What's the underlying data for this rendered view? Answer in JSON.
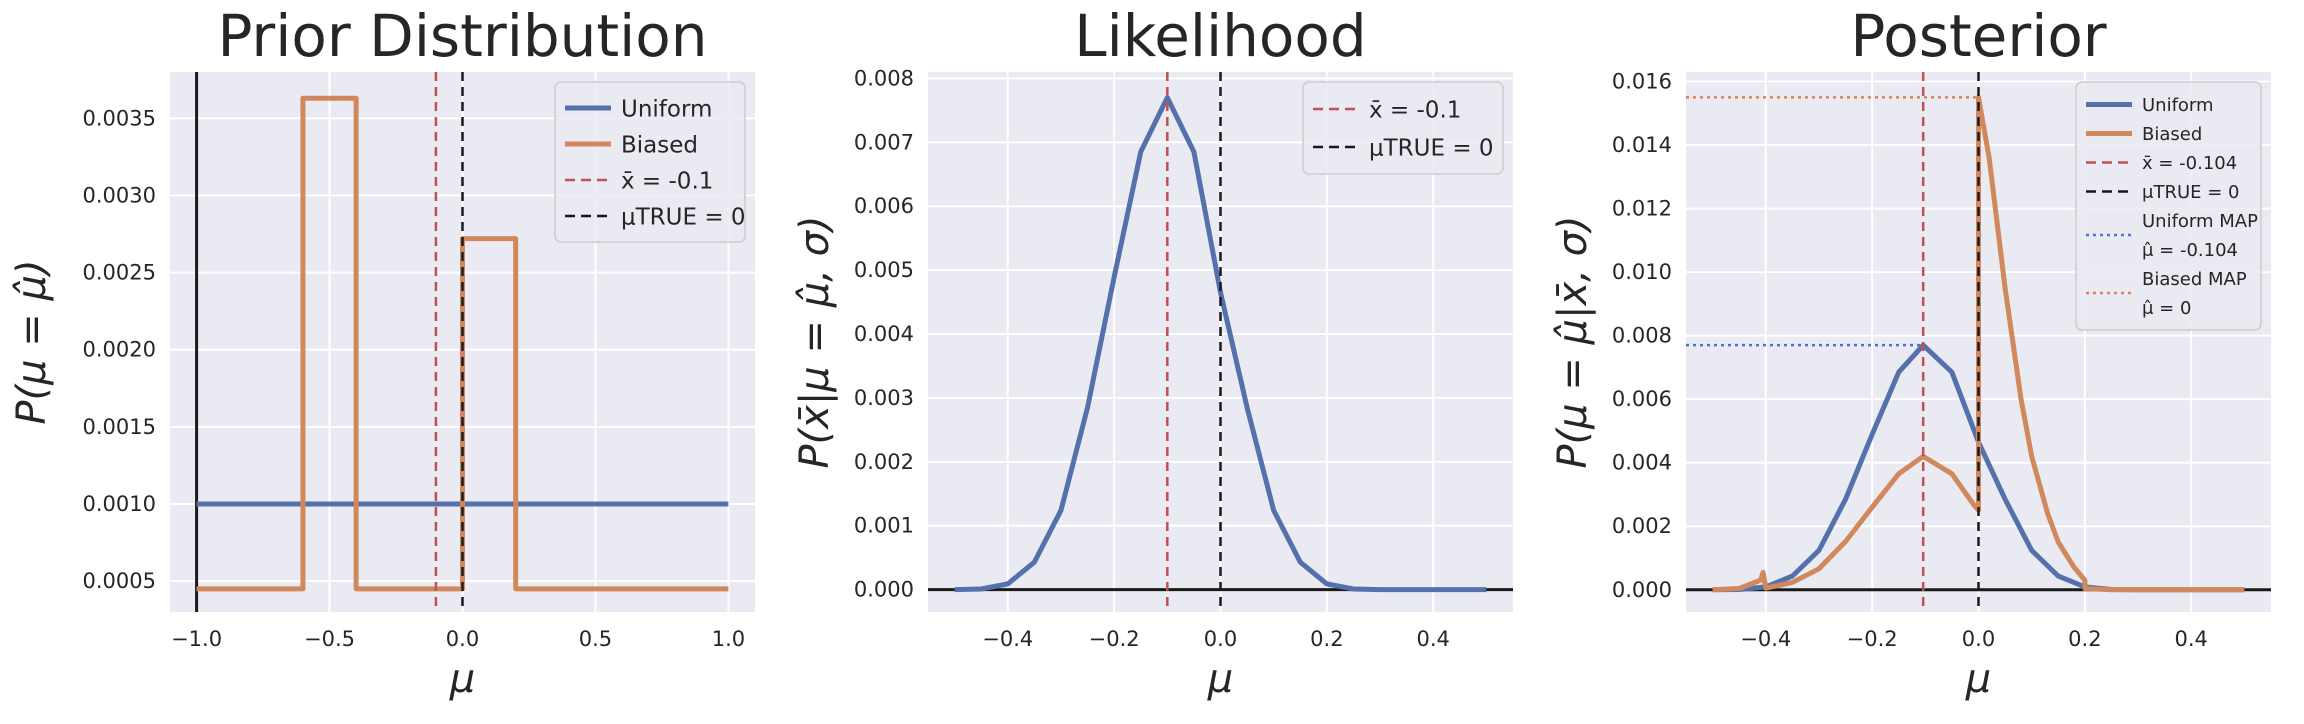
{
  "colors": {
    "uniform": "#5471ab",
    "biased": "#d1885c",
    "xbar": "#c44e52",
    "mu_true": "#1a1a1a",
    "uniform_map": "#4c72d9",
    "biased_map": "#dd8452",
    "axis_line": "#1a1a1a"
  },
  "chart_data": [
    {
      "type": "line",
      "title": "Prior Distribution",
      "xlabel": "μ",
      "ylabel": "P(μ = μ̂)",
      "xlim": [
        -1.1,
        1.1
      ],
      "ylim": [
        0.0003,
        0.0038
      ],
      "xticks": [
        -1.0,
        -0.5,
        0.0,
        0.5,
        1.0
      ],
      "xtick_labels": [
        "−1.0",
        "−0.5",
        "0.0",
        "0.5",
        "1.0"
      ],
      "yticks": [
        0.0005,
        0.001,
        0.0015,
        0.002,
        0.0025,
        0.003,
        0.0035
      ],
      "ytick_labels": [
        "0.0005",
        "0.0010",
        "0.0015",
        "0.0020",
        "0.0025",
        "0.0030",
        "0.0035"
      ],
      "grid": true,
      "legend_position": "upper right",
      "series": [
        {
          "name": "Uniform",
          "style": "solid",
          "color": "uniform",
          "points": [
            [
              -1.0,
              0.001
            ],
            [
              1.0,
              0.001
            ]
          ]
        },
        {
          "name": "Biased",
          "style": "solid",
          "color": "biased",
          "points": [
            [
              -1.0,
              0.00045
            ],
            [
              -0.6,
              0.00045
            ],
            [
              -0.6,
              0.00363
            ],
            [
              -0.4,
              0.00363
            ],
            [
              -0.4,
              0.00045
            ],
            [
              0.0,
              0.00045
            ],
            [
              0.0,
              0.00272
            ],
            [
              0.2,
              0.00272
            ],
            [
              0.2,
              0.00045
            ],
            [
              1.0,
              0.00045
            ]
          ]
        }
      ],
      "vlines": [
        {
          "name": "x̄ = -0.1",
          "x": -0.1,
          "color": "xbar",
          "style": "dashed"
        },
        {
          "name": "μTRUE = 0",
          "x": 0.0,
          "color": "mu_true",
          "style": "dashed"
        }
      ],
      "axis_vline": -1.0,
      "legend": [
        {
          "label": "Uniform",
          "color": "uniform",
          "style": "solid"
        },
        {
          "label": "Biased",
          "color": "biased",
          "style": "solid"
        },
        {
          "label": "x̄ = -0.1",
          "color": "xbar",
          "style": "dashed"
        },
        {
          "label": "μTRUE = 0",
          "color": "mu_true",
          "style": "dashed"
        }
      ]
    },
    {
      "type": "line",
      "title": "Likelihood",
      "xlabel": "μ",
      "ylabel": "P(x̄|μ = μ̂, σ)",
      "xlim": [
        -0.55,
        0.55
      ],
      "ylim": [
        -0.00035,
        0.0081
      ],
      "xticks": [
        -0.4,
        -0.2,
        0.0,
        0.2,
        0.4
      ],
      "xtick_labels": [
        "−0.4",
        "−0.2",
        "0.0",
        "0.2",
        "0.4"
      ],
      "yticks": [
        0.0,
        0.001,
        0.002,
        0.003,
        0.004,
        0.005,
        0.006,
        0.007,
        0.008
      ],
      "ytick_labels": [
        "0.000",
        "0.001",
        "0.002",
        "0.003",
        "0.004",
        "0.005",
        "0.006",
        "0.007",
        "0.008"
      ],
      "grid": true,
      "legend_position": "upper right",
      "series": [
        {
          "name": "Likelihood",
          "style": "solid",
          "color": "uniform",
          "points": [
            [
              -0.5,
              0.0
            ],
            [
              -0.45,
              1e-05
            ],
            [
              -0.4,
              9e-05
            ],
            [
              -0.35,
              0.00043
            ],
            [
              -0.3,
              0.00124
            ],
            [
              -0.25,
              0.00285
            ],
            [
              -0.2,
              0.00489
            ],
            [
              -0.15,
              0.00685
            ],
            [
              -0.1,
              0.0077
            ],
            [
              -0.05,
              0.00685
            ],
            [
              0.0,
              0.00465
            ],
            [
              0.05,
              0.00285
            ],
            [
              0.1,
              0.00124
            ],
            [
              0.15,
              0.00043
            ],
            [
              0.2,
              9e-05
            ],
            [
              0.25,
              1e-05
            ],
            [
              0.3,
              0.0
            ],
            [
              0.4,
              0.0
            ],
            [
              0.5,
              0.0
            ]
          ]
        }
      ],
      "vlines": [
        {
          "name": "x̄ = -0.1",
          "x": -0.1,
          "color": "xbar",
          "style": "dashed"
        },
        {
          "name": "μTRUE = 0",
          "x": 0.0,
          "color": "mu_true",
          "style": "dashed"
        }
      ],
      "axis_hline": 0.0,
      "legend": [
        {
          "label": "x̄ = -0.1",
          "color": "xbar",
          "style": "dashed"
        },
        {
          "label": "μTRUE = 0",
          "color": "mu_true",
          "style": "dashed"
        }
      ]
    },
    {
      "type": "line",
      "title": "Posterior",
      "xlabel": "μ",
      "ylabel": "P(μ = μ̂|x̄, σ)",
      "xlim": [
        -0.55,
        0.55
      ],
      "ylim": [
        -0.0007,
        0.0163
      ],
      "xticks": [
        -0.4,
        -0.2,
        0.0,
        0.2,
        0.4
      ],
      "xtick_labels": [
        "−0.4",
        "−0.2",
        "0.0",
        "0.2",
        "0.4"
      ],
      "yticks": [
        0.0,
        0.002,
        0.004,
        0.006,
        0.008,
        0.01,
        0.012,
        0.014,
        0.016
      ],
      "ytick_labels": [
        "0.000",
        "0.002",
        "0.004",
        "0.006",
        "0.008",
        "0.010",
        "0.012",
        "0.014",
        "0.016"
      ],
      "grid": true,
      "legend_position": "upper right",
      "series": [
        {
          "name": "Uniform",
          "style": "solid",
          "color": "uniform",
          "points": [
            [
              -0.5,
              0.0
            ],
            [
              -0.45,
              1e-05
            ],
            [
              -0.4,
              9e-05
            ],
            [
              -0.35,
              0.00043
            ],
            [
              -0.3,
              0.00124
            ],
            [
              -0.25,
              0.00285
            ],
            [
              -0.2,
              0.00489
            ],
            [
              -0.15,
              0.00685
            ],
            [
              -0.104,
              0.0077
            ],
            [
              -0.05,
              0.00685
            ],
            [
              0.0,
              0.00465
            ],
            [
              0.05,
              0.00285
            ],
            [
              0.1,
              0.00124
            ],
            [
              0.15,
              0.00043
            ],
            [
              0.2,
              9e-05
            ],
            [
              0.25,
              1e-05
            ],
            [
              0.3,
              0.0
            ],
            [
              0.4,
              0.0
            ],
            [
              0.5,
              0.0
            ]
          ]
        },
        {
          "name": "Biased",
          "style": "solid",
          "color": "biased",
          "points": [
            [
              -0.5,
              0.0
            ],
            [
              -0.45,
              4e-05
            ],
            [
              -0.41,
              0.0003
            ],
            [
              -0.405,
              0.00055
            ],
            [
              -0.4,
              5e-05
            ],
            [
              -0.35,
              0.00023
            ],
            [
              -0.3,
              0.00066
            ],
            [
              -0.25,
              0.00152
            ],
            [
              -0.2,
              0.0026
            ],
            [
              -0.15,
              0.00365
            ],
            [
              -0.104,
              0.0042
            ],
            [
              -0.05,
              0.00365
            ],
            [
              -0.01,
              0.0027
            ],
            [
              0.0,
              0.0025
            ],
            [
              0.0,
              0.0155
            ],
            [
              0.02,
              0.0136
            ],
            [
              0.05,
              0.0095
            ],
            [
              0.08,
              0.006
            ],
            [
              0.1,
              0.0042
            ],
            [
              0.13,
              0.0024
            ],
            [
              0.15,
              0.0015
            ],
            [
              0.18,
              0.0007
            ],
            [
              0.2,
              0.0003
            ],
            [
              0.2,
              4e-05
            ],
            [
              0.25,
              0.0
            ],
            [
              0.5,
              0.0
            ]
          ]
        }
      ],
      "vlines": [
        {
          "name": "x̄ = -0.104",
          "x": -0.104,
          "color": "xbar",
          "style": "dashed"
        },
        {
          "name": "μTRUE = 0",
          "x": 0.0,
          "color": "mu_true",
          "style": "dashed"
        }
      ],
      "map_lines": [
        {
          "name": "Uniform MAP",
          "x": -0.104,
          "y": 0.0077,
          "color": "uniform_map"
        },
        {
          "name": "Biased MAP",
          "x": 0.0,
          "y": 0.0155,
          "color": "biased_map"
        }
      ],
      "axis_hline": 0.0,
      "legend": [
        {
          "label": "Uniform",
          "color": "uniform",
          "style": "solid"
        },
        {
          "label": "Biased",
          "color": "biased",
          "style": "solid"
        },
        {
          "label": "x̄ = -0.104",
          "color": "xbar",
          "style": "dashed"
        },
        {
          "label": "μTRUE = 0",
          "color": "mu_true",
          "style": "dashed"
        },
        {
          "label": "Uniform MAP",
          "label2": "μ̂ = -0.104",
          "color": "uniform_map",
          "style": "dotted"
        },
        {
          "label": "Biased MAP",
          "label2": "μ̂ = 0",
          "color": "biased_map",
          "style": "dotted"
        }
      ]
    }
  ]
}
